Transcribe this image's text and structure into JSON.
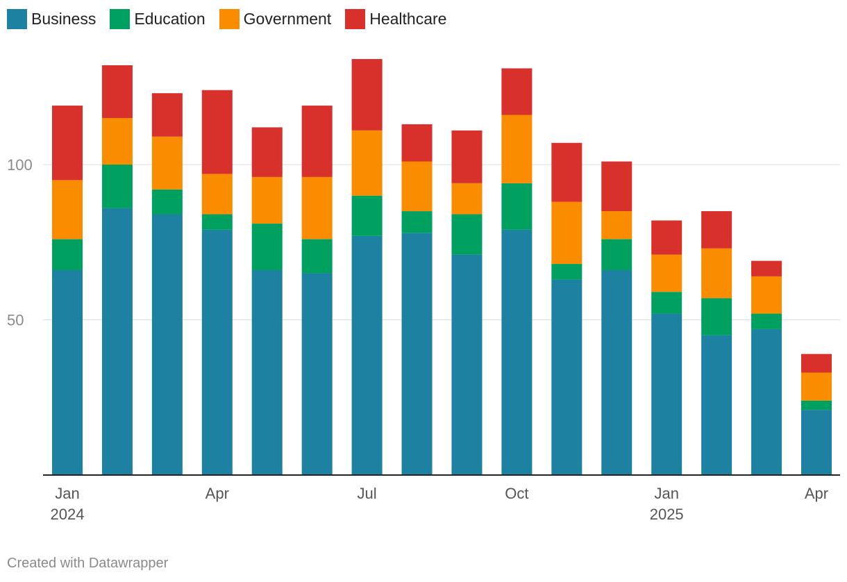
{
  "chart_data": {
    "type": "bar",
    "stacked": true,
    "categories": [
      "Jan 2024",
      "Feb 2024",
      "Mar 2024",
      "Apr 2024",
      "May 2024",
      "Jun 2024",
      "Jul 2024",
      "Aug 2024",
      "Sep 2024",
      "Oct 2024",
      "Nov 2024",
      "Dec 2024",
      "Jan 2025",
      "Feb 2025",
      "Mar 2025",
      "Apr 2025"
    ],
    "series": [
      {
        "name": "Business",
        "color": "#1d81a2",
        "values": [
          66,
          86,
          84,
          79,
          66,
          65,
          77,
          78,
          71,
          79,
          63,
          66,
          52,
          45,
          47,
          21
        ]
      },
      {
        "name": "Education",
        "color": "#00a160",
        "values": [
          10,
          14,
          8,
          5,
          15,
          11,
          13,
          7,
          13,
          15,
          5,
          10,
          7,
          12,
          5,
          3
        ]
      },
      {
        "name": "Government",
        "color": "#fa8c00",
        "values": [
          19,
          15,
          17,
          13,
          15,
          20,
          21,
          16,
          10,
          22,
          20,
          9,
          12,
          16,
          12,
          9
        ]
      },
      {
        "name": "Healthcare",
        "color": "#d8302a",
        "values": [
          24,
          17,
          14,
          27,
          16,
          23,
          23,
          12,
          17,
          15,
          19,
          16,
          11,
          12,
          5,
          6
        ]
      }
    ],
    "x_tick_labels": [
      {
        "index": 0,
        "lines": [
          "Jan",
          "2024"
        ]
      },
      {
        "index": 3,
        "lines": [
          "Apr"
        ]
      },
      {
        "index": 6,
        "lines": [
          "Jul"
        ]
      },
      {
        "index": 9,
        "lines": [
          "Oct"
        ]
      },
      {
        "index": 12,
        "lines": [
          "Jan",
          "2025"
        ]
      },
      {
        "index": 15,
        "lines": [
          "Apr"
        ]
      }
    ],
    "y_ticks": [
      50,
      100
    ],
    "ylim": [
      0,
      140
    ],
    "grid": true,
    "legend_position": "top-left",
    "title": "",
    "xlabel": "",
    "ylabel": ""
  },
  "footer": {
    "credit": "Created with Datawrapper"
  }
}
